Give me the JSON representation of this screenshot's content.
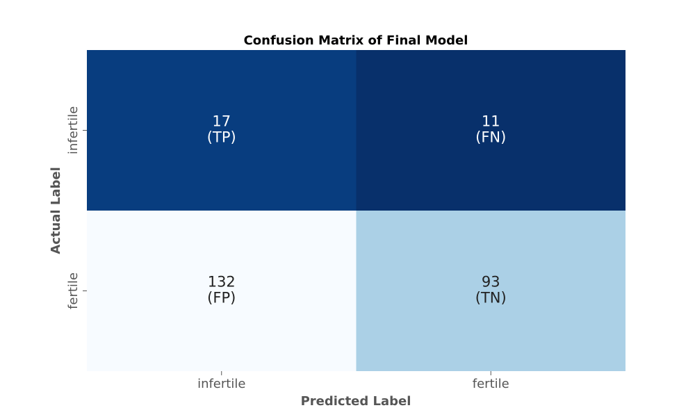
{
  "chart_data": {
    "type": "heatmap",
    "title": "Confusion Matrix of Final Model",
    "xlabel": "Predicted Label",
    "ylabel": "Actual Label",
    "x_categories": [
      "infertile",
      "fertile"
    ],
    "y_categories": [
      "infertile",
      "fertile"
    ],
    "values": [
      [
        17,
        11
      ],
      [
        132,
        93
      ]
    ],
    "annotations": [
      [
        "(TP)",
        "(FN)"
      ],
      [
        "(FP)",
        "(TN)"
      ]
    ],
    "colormap": "Blues",
    "colorbar": false,
    "grid": false
  },
  "colors": {
    "cell_fills": [
      [
        "#083d7f",
        "#08306b"
      ],
      [
        "#f7fbff",
        "#abd0e6"
      ]
    ],
    "dark_text": "#222222",
    "light_text": "#ffffff"
  }
}
